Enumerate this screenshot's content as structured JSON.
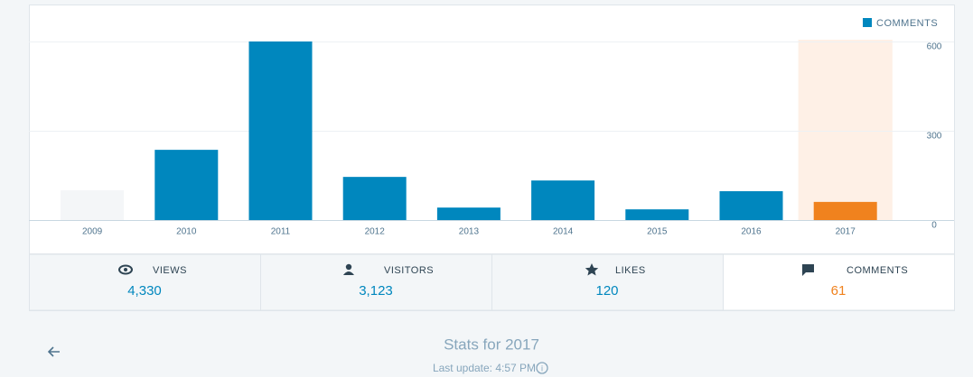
{
  "chart_data": {
    "type": "bar",
    "legend": "COMMENTS",
    "legend_color": "#0087be",
    "categories": [
      "2009",
      "2010",
      "2011",
      "2012",
      "2013",
      "2014",
      "2015",
      "2016",
      "2017"
    ],
    "values": [
      100,
      236,
      600,
      145,
      42,
      133,
      36,
      97,
      61
    ],
    "colors": [
      "#f4f6f8",
      "#0087be",
      "#0087be",
      "#0087be",
      "#0087be",
      "#0087be",
      "#0087be",
      "#0087be",
      "#f0821e"
    ],
    "highlight_band": {
      "index": 8,
      "color": "#fef0e6"
    },
    "ylim": [
      0,
      600
    ],
    "yticks": [
      0,
      300,
      600
    ],
    "grid": true
  },
  "tabs": [
    {
      "label": "VIEWS",
      "value": "4,330",
      "selected": false
    },
    {
      "label": "VISITORS",
      "value": "3,123",
      "selected": false
    },
    {
      "label": "LIKES",
      "value": "120",
      "selected": false
    },
    {
      "label": "COMMENTS",
      "value": "61",
      "selected": true
    }
  ],
  "footer": {
    "title": "Stats for 2017",
    "update": "Last update: 4:57 PM"
  }
}
